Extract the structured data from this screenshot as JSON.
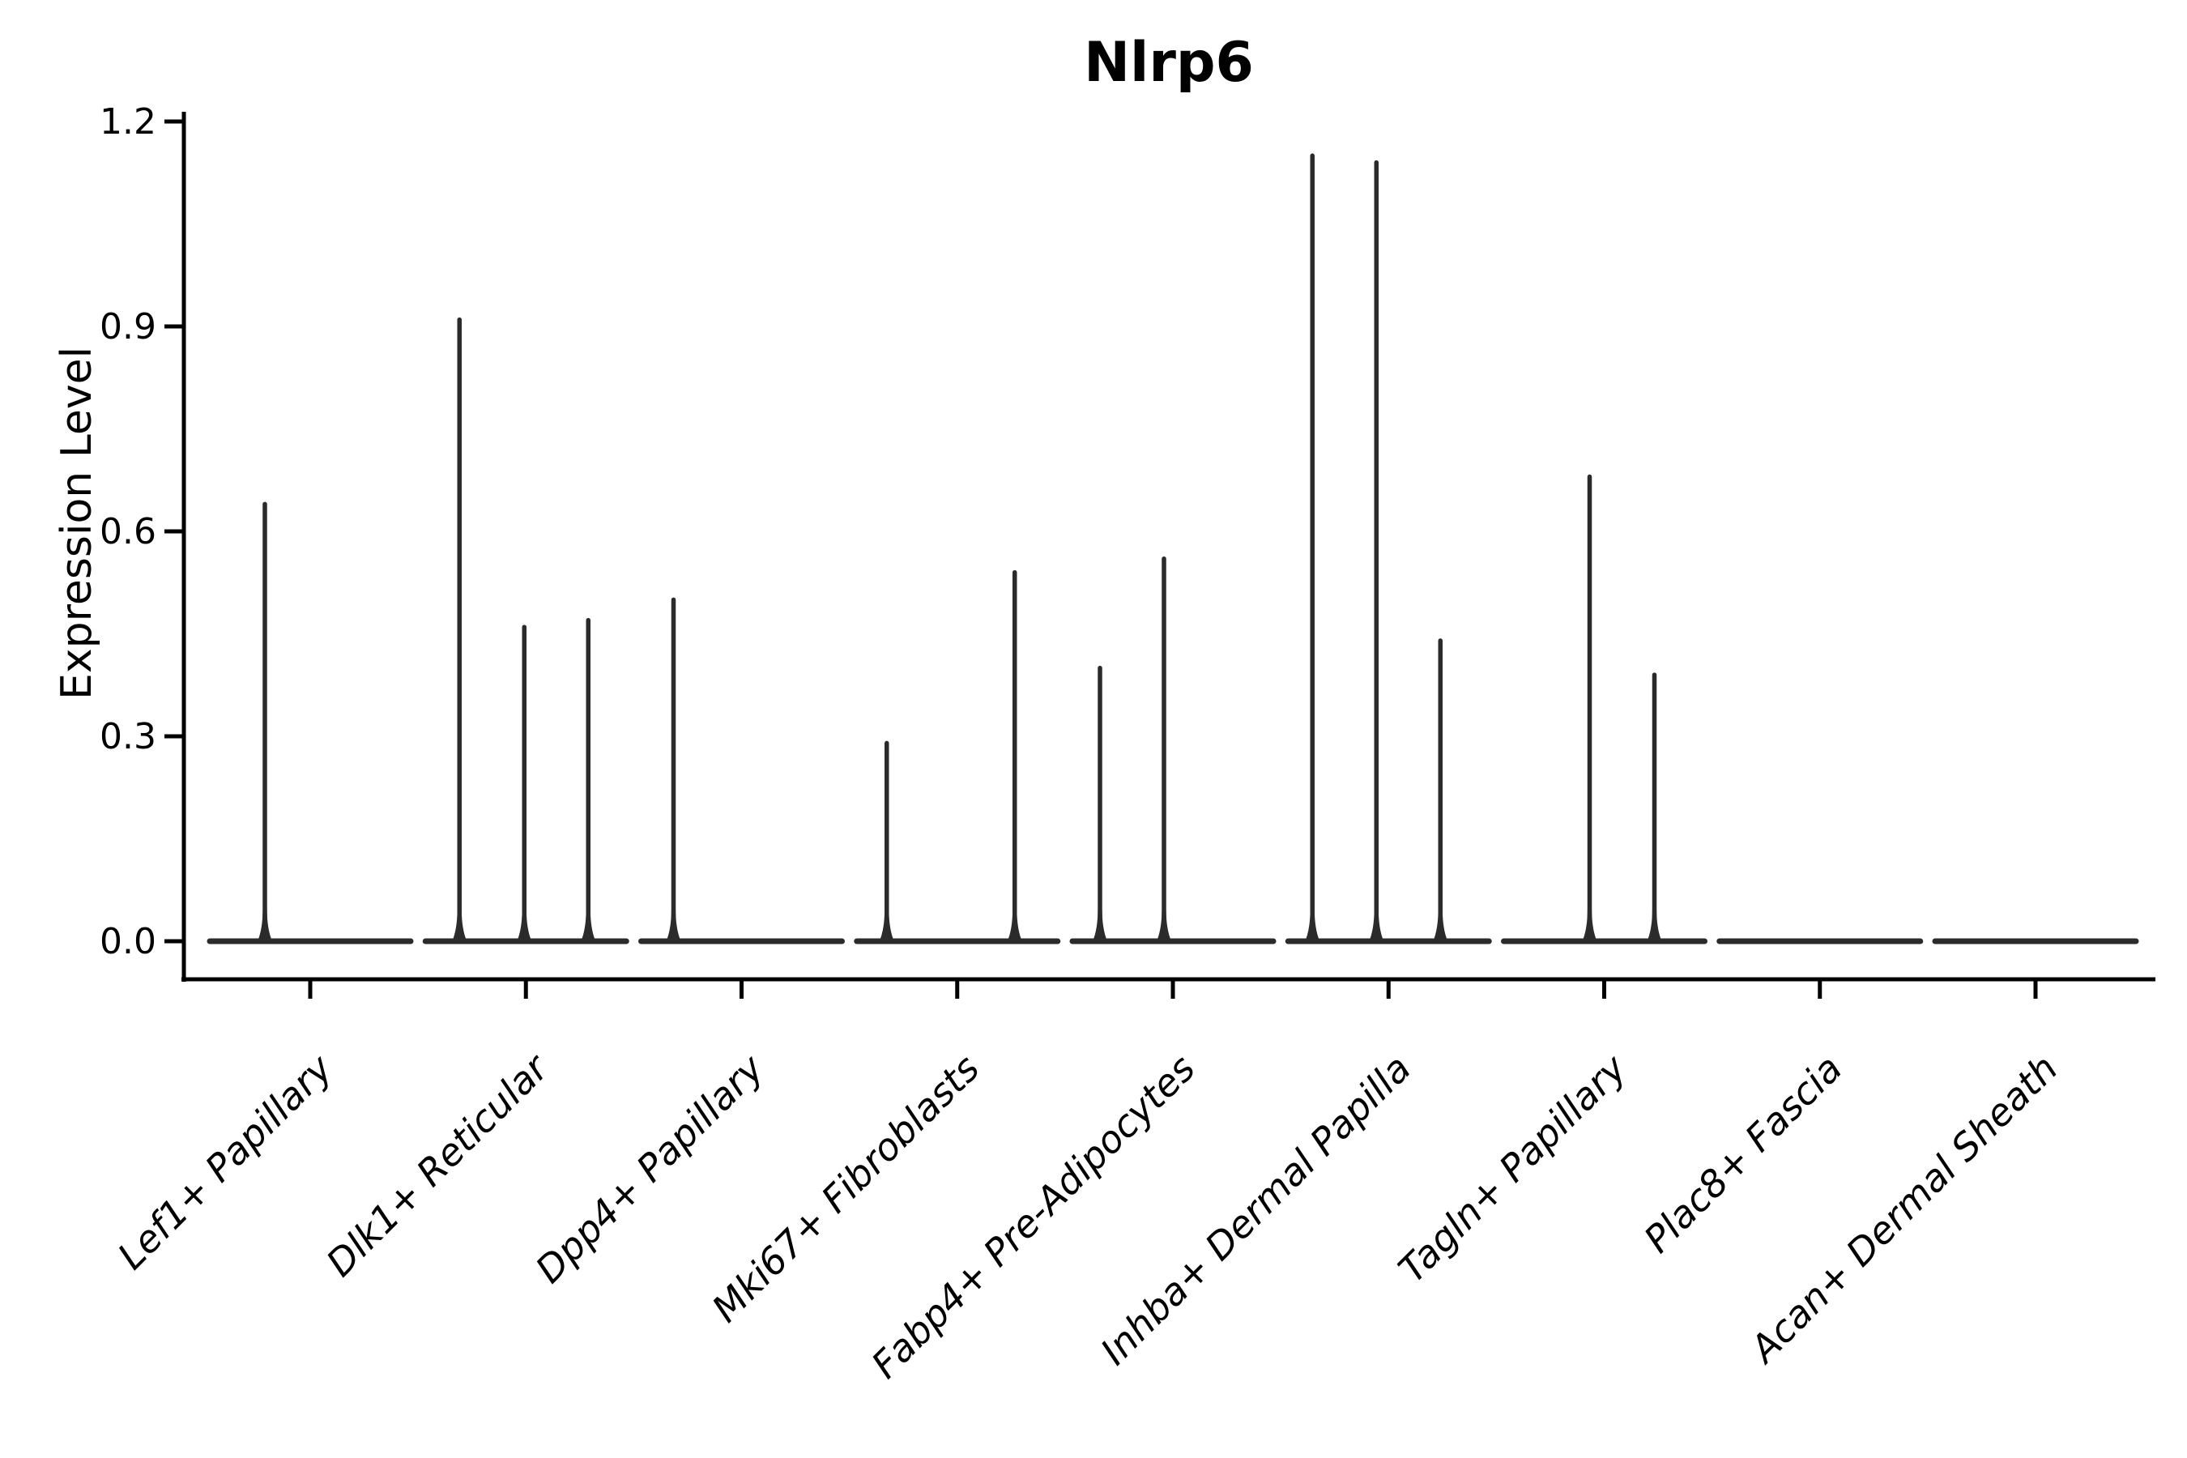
{
  "chart_data": {
    "type": "violin",
    "title": "Nlrp6",
    "ylabel": "Expression Level",
    "xlabel": "",
    "ytick_labels": [
      "0.0",
      "0.3",
      "0.6",
      "0.9",
      "1.2"
    ],
    "ytick_values": [
      0.0,
      0.3,
      0.6,
      0.9,
      1.2
    ],
    "ylim": [
      0.0,
      1.27
    ],
    "grid": false,
    "legend": "none",
    "x_labels_rotation_deg": 45,
    "x_labels_style": "italic",
    "categories": [
      "Lef1+ Papillary",
      "Dlk1+ Reticular",
      "Dpp4+ Papillary",
      "Mki67+ Fibroblasts",
      "Fabp4+ Pre-Adipocytes",
      "Inhba+ Dermal Papilla",
      "Tagln+ Papillary",
      "Plac8+ Fascia",
      "Acan+ Dermal Sheath"
    ],
    "series": [
      {
        "category": "Lef1+ Papillary",
        "baseline_value": 0.0,
        "violins": [
          {
            "dx": -56,
            "max": 0.64
          }
        ]
      },
      {
        "category": "Dlk1+ Reticular",
        "baseline_value": 0.0,
        "violins": [
          {
            "dx": -82,
            "max": 0.91
          },
          {
            "dx": -2,
            "max": 0.46
          },
          {
            "dx": 77,
            "max": 0.47
          }
        ]
      },
      {
        "category": "Dpp4+ Papillary",
        "baseline_value": 0.0,
        "violins": [
          {
            "dx": -84,
            "max": 0.5
          }
        ]
      },
      {
        "category": "Mki67+ Fibroblasts",
        "baseline_value": 0.0,
        "violins": [
          {
            "dx": -87,
            "max": 0.29
          },
          {
            "dx": 71,
            "max": 0.54
          }
        ]
      },
      {
        "category": "Fabp4+ Pre-Adipocytes",
        "baseline_value": 0.0,
        "violins": [
          {
            "dx": -90,
            "max": 0.4
          },
          {
            "dx": -11,
            "max": 0.56
          }
        ]
      },
      {
        "category": "Inhba+ Dermal Papilla",
        "baseline_value": 0.0,
        "violins": [
          {
            "dx": -94,
            "max": 1.15
          },
          {
            "dx": -15,
            "max": 1.14
          },
          {
            "dx": 64,
            "max": 0.44
          }
        ]
      },
      {
        "category": "Tagln+ Papillary",
        "baseline_value": 0.0,
        "violins": [
          {
            "dx": -18,
            "max": 0.68
          },
          {
            "dx": 62,
            "max": 0.39
          }
        ]
      },
      {
        "category": "Plac8+ Fascia",
        "baseline_value": 0.0,
        "violins": []
      },
      {
        "category": "Acan+ Dermal Sheath",
        "baseline_value": 0.0,
        "violins": []
      }
    ],
    "colors": {
      "violin": "#2b2b2b",
      "axis": "#000000",
      "text": "#000000",
      "background": "#ffffff"
    }
  }
}
